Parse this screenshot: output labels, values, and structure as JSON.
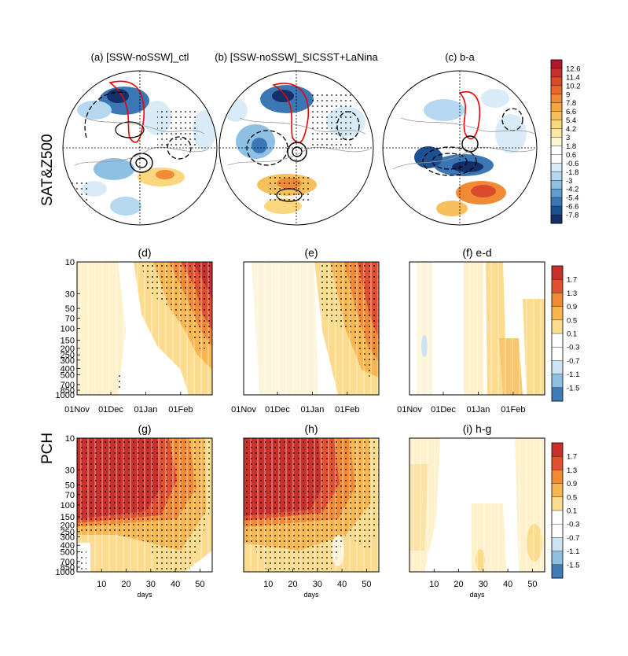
{
  "chart_data": {
    "type": "heatmap",
    "row_labels": {
      "top": "SAT&Z500",
      "middle": "",
      "bottom": "PCH"
    },
    "maps": [
      {
        "label": "(a) [SSW-noSSW]_ctl"
      },
      {
        "label": "(b) [SSW-noSSW]_SICSST+LaNina"
      },
      {
        "label": "(c) b-a"
      }
    ],
    "map_colorbar": {
      "levels": [
        "12.6",
        "11.4",
        "10.2",
        "9",
        "7.8",
        "6.6",
        "5.4",
        "4.2",
        "3",
        "1.8",
        "0.6",
        "-0.6",
        "-1.8",
        "-3",
        "-4.2",
        "-5.4",
        "-6.6",
        "-7.8"
      ],
      "colors": [
        "#b2182b",
        "#c9302c",
        "#dc4a2e",
        "#e8672f",
        "#f08a35",
        "#f5a641",
        "#f8c05c",
        "#fad67f",
        "#fbe6a6",
        "#fdf4d4",
        "#ffffff",
        "#ffffff",
        "#d8ebf7",
        "#b5d8f0",
        "#8ec0e3",
        "#5f9dd0",
        "#3b76b5",
        "#1d4f93",
        "#14306b"
      ]
    },
    "panels_middle": [
      {
        "label": "(d)"
      },
      {
        "label": "(e)"
      },
      {
        "label": "(f) e-d"
      }
    ],
    "panels_bottom": [
      {
        "label": "(g)"
      },
      {
        "label": "(h)"
      },
      {
        "label": "(i) h-g"
      }
    ],
    "y_axis": {
      "ticks": [
        "10",
        "30",
        "50",
        "70",
        "100",
        "150",
        "200",
        "250",
        "300",
        "400",
        "500",
        "700",
        "850",
        "1000"
      ],
      "values": [
        10,
        30,
        50,
        70,
        100,
        150,
        200,
        250,
        300,
        400,
        500,
        700,
        850,
        1000
      ],
      "ylim": [
        10,
        1000
      ],
      "scale": "log"
    },
    "x_axis_middle": {
      "ticks": [
        "01Nov",
        "01Dec",
        "01Jan",
        "01Feb"
      ],
      "day_index": [
        0,
        30,
        61,
        92
      ],
      "xlim": [
        0,
        120
      ]
    },
    "x_axis_bottom": {
      "ticks": [
        "10",
        "20",
        "30",
        "40",
        "50"
      ],
      "values": [
        10,
        20,
        30,
        40,
        50
      ],
      "xlim": [
        0,
        55
      ],
      "xlabel": "days"
    },
    "pch_colorbar": {
      "levels": [
        "1.7",
        "1.3",
        "0.9",
        "0.5",
        "0.1",
        "-0.3",
        "-0.7",
        "-1.1",
        "-1.5"
      ],
      "colors": [
        "#c9302c",
        "#e0522f",
        "#f08a35",
        "#f8b650",
        "#fbdc8e",
        "#ffffff",
        "#ffffff",
        "#cbe3f3",
        "#8fc0e2",
        "#3f7cb8"
      ]
    }
  }
}
